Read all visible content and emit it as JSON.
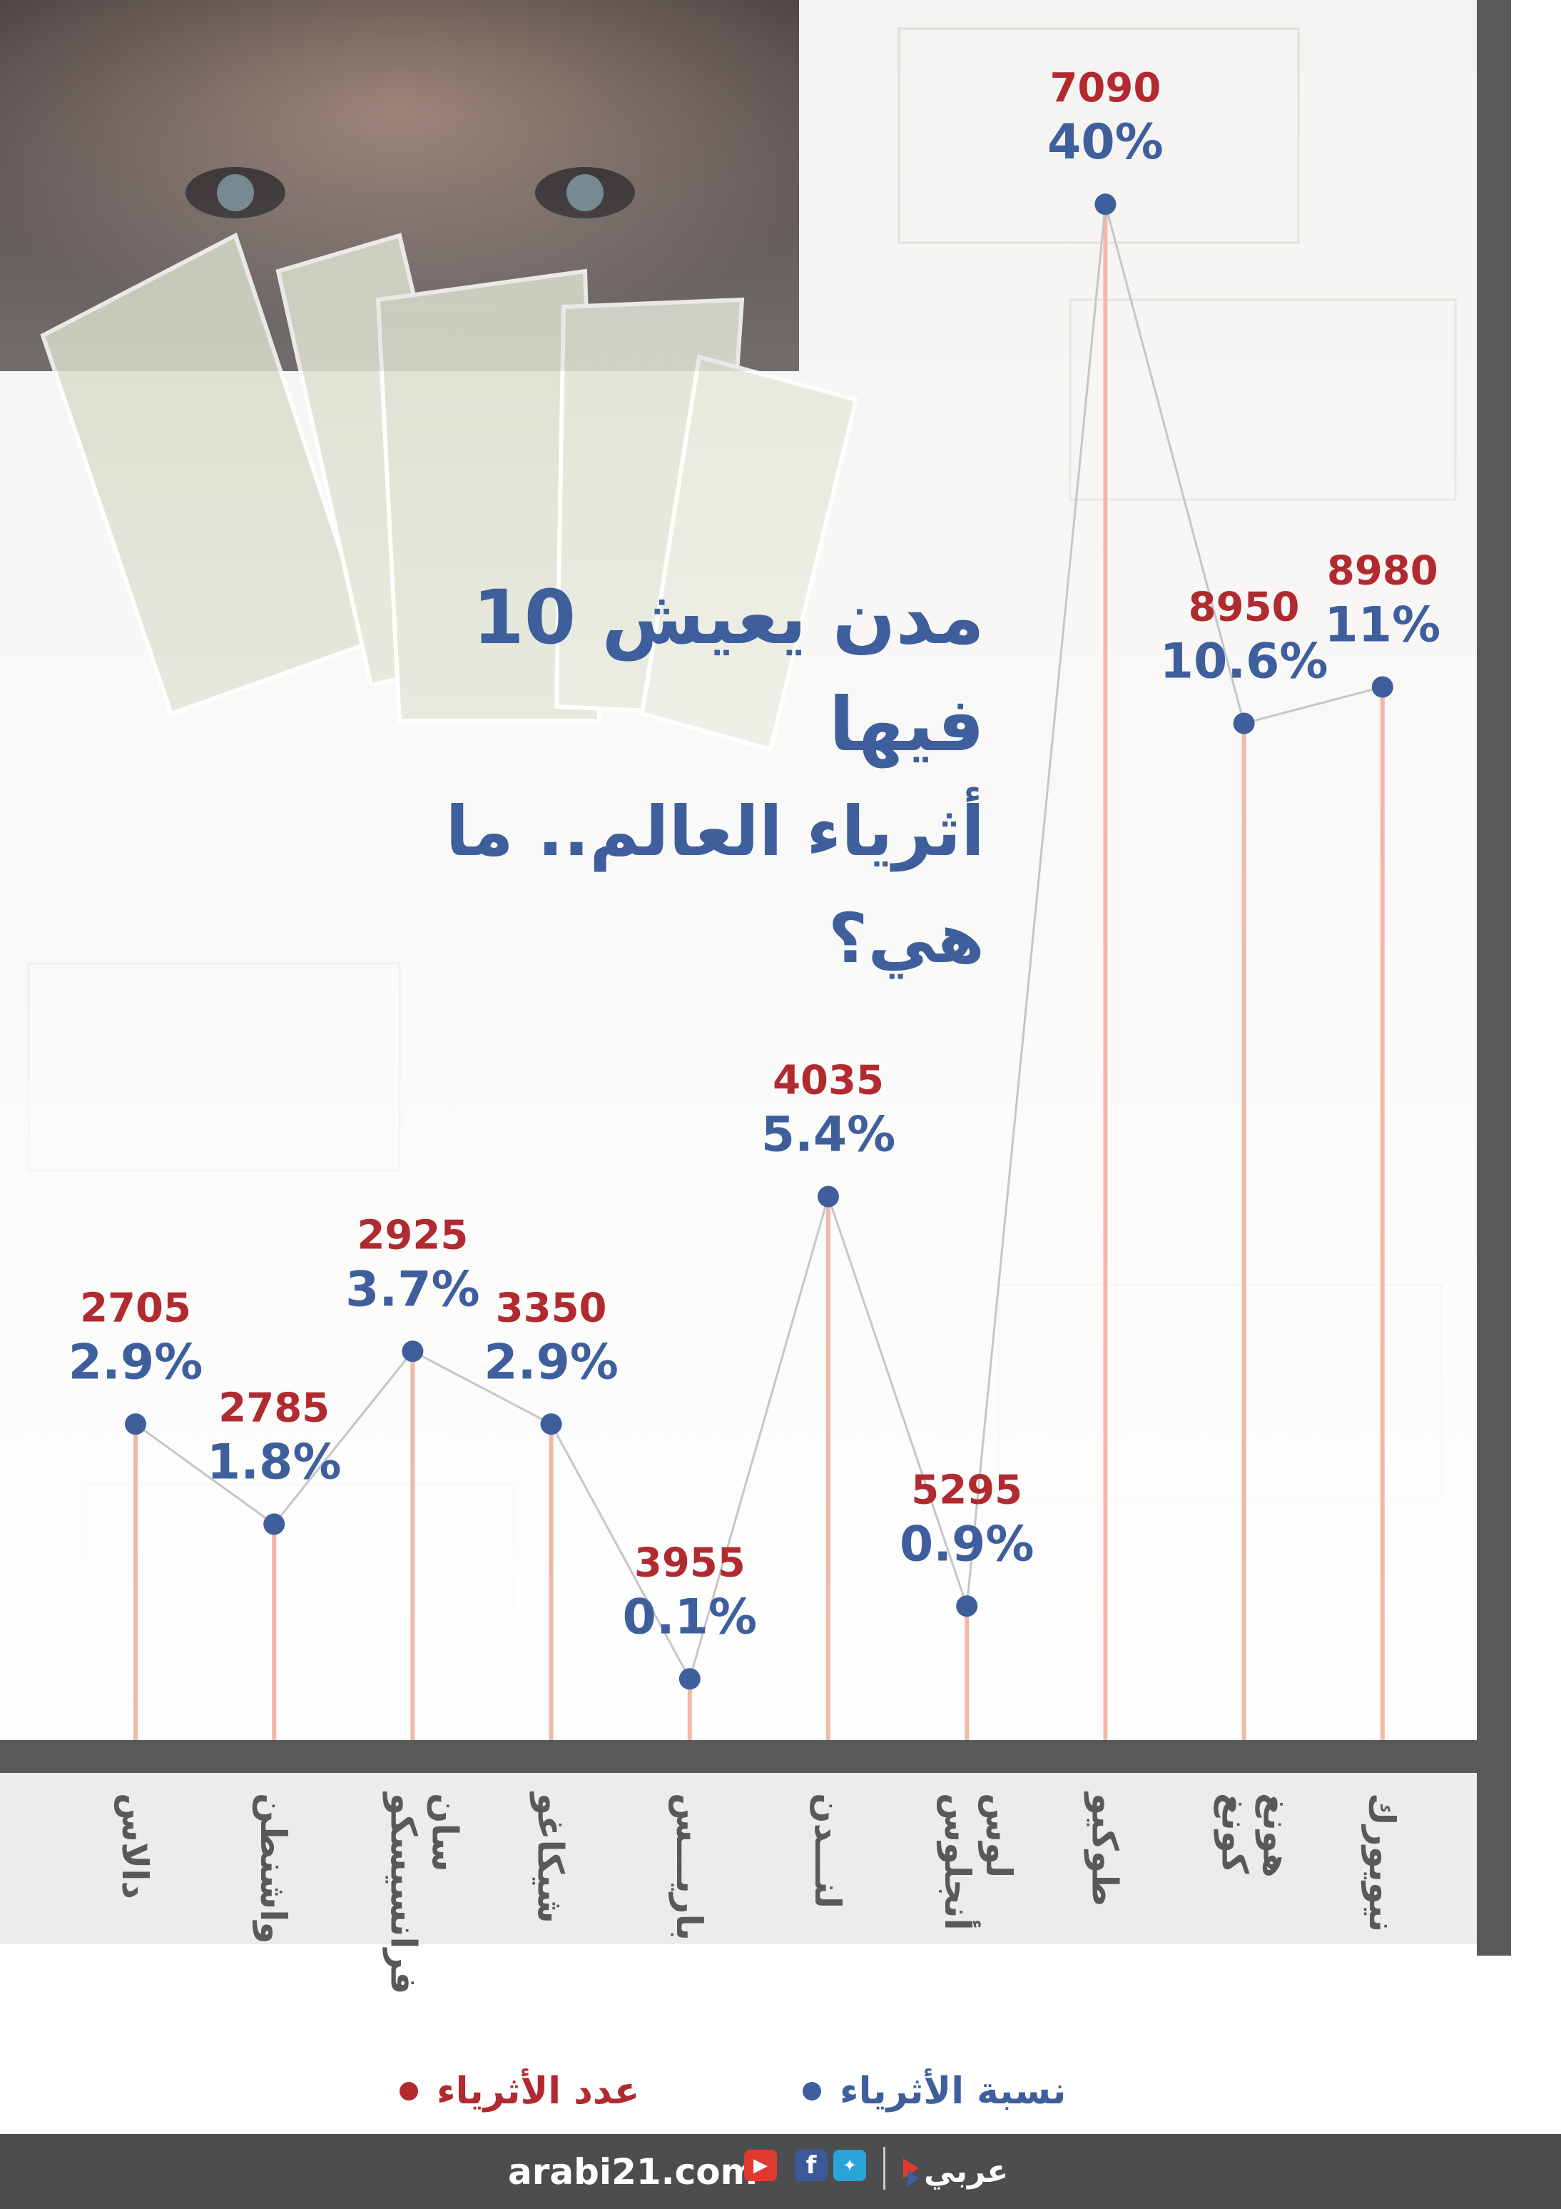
{
  "title": {
    "line1": "10 مدن يعيش فيها",
    "line2": "أثرياء العالم.. ما هي؟"
  },
  "legend": {
    "percent_label": "نسبة الأثرياء",
    "count_label": "عدد الأثرياء"
  },
  "footer": {
    "site": "arabi21.com",
    "brand": "عربي"
  },
  "colors": {
    "percent": "#3e5f9c",
    "count": "#b02a30",
    "stem": "#f2b8a6",
    "connector": "#c6c6c6",
    "axis_dark": "#58595b",
    "footer": "#4c4d4f"
  },
  "icons": [
    "youtube-icon",
    "facebook-icon",
    "twitter-icon",
    "arabi21-logo-icon"
  ],
  "chart_data": {
    "type": "line",
    "categories": [
      "دالاس",
      "واشنطن",
      "سان فرانسيسكو",
      "شيكاغو",
      "باريـــس",
      "لنـــدن",
      "لوس أنجلوس",
      "طوكيو",
      "هونغ كونغ",
      "نيويورك"
    ],
    "series": [
      {
        "name": "نسبة الأثرياء",
        "values": [
          "2.9%",
          "1.8%",
          "3.7%",
          "2.9%",
          "0.1%",
          "5.4%",
          "0.9%",
          "40%",
          "10.6%",
          "11%"
        ]
      },
      {
        "name": "عدد الأثرياء",
        "values": [
          2705,
          2785,
          2925,
          3350,
          3955,
          4035,
          5295,
          7090,
          8950,
          8980
        ]
      }
    ]
  }
}
